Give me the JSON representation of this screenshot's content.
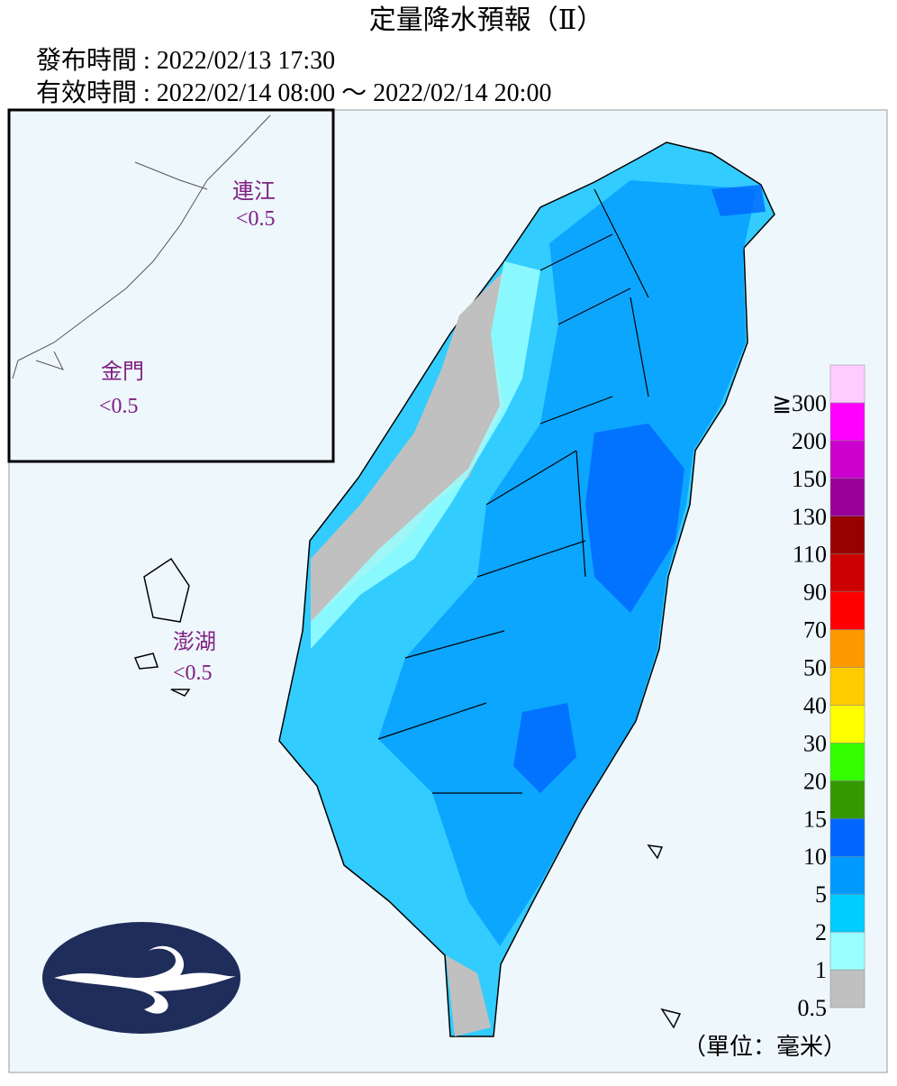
{
  "header": {
    "title": "定量降水預報（Ⅱ）",
    "issued": "發布時間 : 2022/02/13 17:30",
    "valid": "有效時間 : 2022/02/14 08:00 ～ 2022/02/14 20:00"
  },
  "regions": [
    {
      "name": "連江",
      "value": "<0.5"
    },
    {
      "name": "金門",
      "value": "<0.5"
    },
    {
      "name": "澎湖",
      "value": "<0.5"
    }
  ],
  "legend": {
    "labels": [
      "0.5",
      "1",
      "2",
      "5",
      "10",
      "15",
      "20",
      "30",
      "40",
      "50",
      "70",
      "90",
      "110",
      "130",
      "150",
      "200",
      "≧300"
    ],
    "colors": [
      "#c0c0c0",
      "#99ffff",
      "#00ccff",
      "#0099ff",
      "#0066ff",
      "#339900",
      "#33ff00",
      "#ffff00",
      "#ffcc00",
      "#ff9900",
      "#ff0000",
      "#cc0000",
      "#990000",
      "#990099",
      "#cc00cc",
      "#ff00ff",
      "#ffccff"
    ],
    "unit": "（單位：毫米）"
  }
}
